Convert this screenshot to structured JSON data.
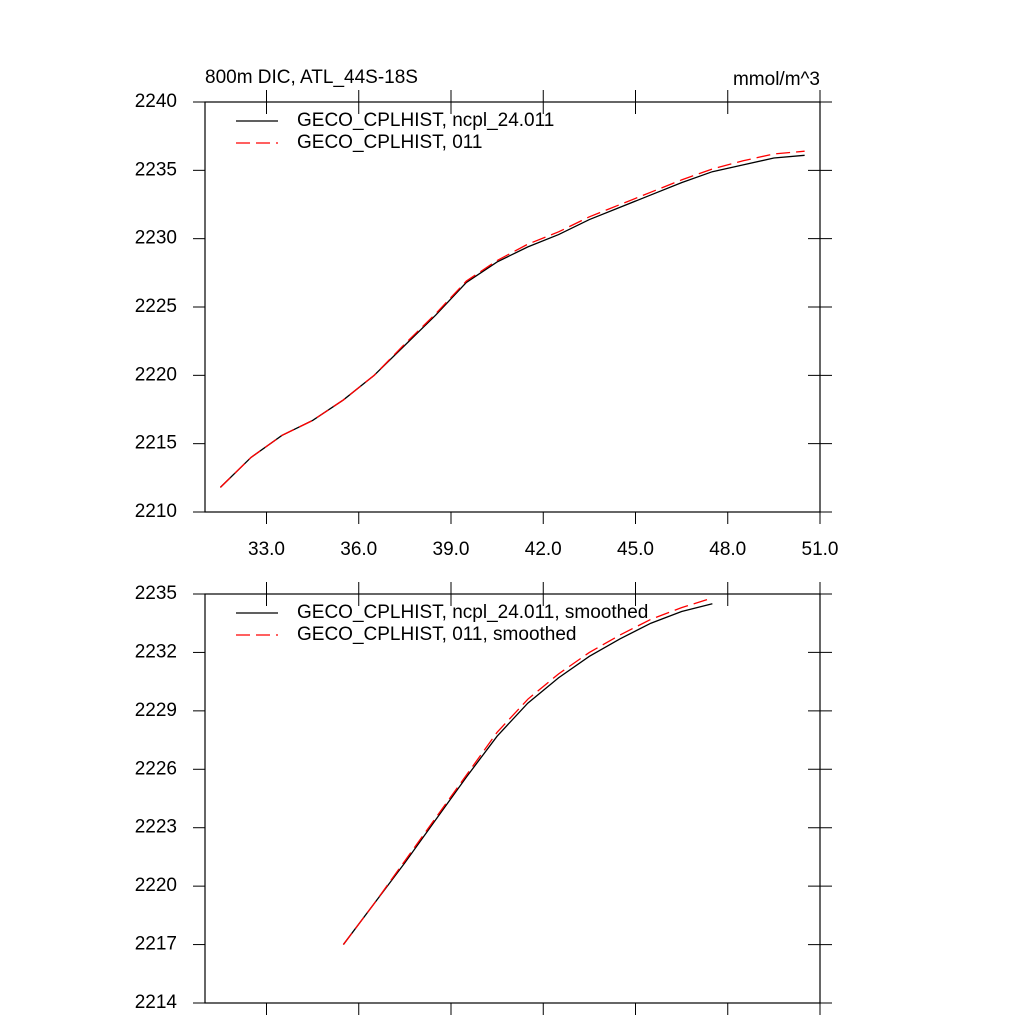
{
  "chart_data": [
    {
      "type": "line",
      "title": "800m DIC, ATL_44S-18S",
      "units": "mmol/m^3",
      "x": [
        31.5,
        32.5,
        33.5,
        34.5,
        35.5,
        36.5,
        37.5,
        38.5,
        39.5,
        40.5,
        41.5,
        42.5,
        43.5,
        44.5,
        45.5,
        46.5,
        47.5,
        48.5,
        49.5,
        50.5
      ],
      "series": [
        {
          "name": "GECO_CPLHIST, ncpl_24.011",
          "color": "#000000",
          "linestyle": "solid",
          "values": [
            2211.8,
            2214.0,
            2215.6,
            2216.7,
            2218.2,
            2220.0,
            2222.2,
            2224.4,
            2226.8,
            2228.3,
            2229.4,
            2230.3,
            2231.4,
            2232.3,
            2233.2,
            2234.1,
            2234.9,
            2235.4,
            2235.9,
            2236.1
          ]
        },
        {
          "name": "GECO_CPLHIST, 011",
          "color": "#ff0000",
          "linestyle": "dashed",
          "values": [
            2211.8,
            2214.0,
            2215.6,
            2216.7,
            2218.2,
            2220.0,
            2222.3,
            2224.5,
            2226.9,
            2228.4,
            2229.6,
            2230.5,
            2231.6,
            2232.5,
            2233.4,
            2234.3,
            2235.1,
            2235.7,
            2236.2,
            2236.4
          ]
        }
      ],
      "xlim": [
        31,
        51
      ],
      "xticks": [
        {
          "value": 33,
          "label": "33.0"
        },
        {
          "value": 36,
          "label": "36.0"
        },
        {
          "value": 39,
          "label": "39.0"
        },
        {
          "value": 42,
          "label": "42.0"
        },
        {
          "value": 45,
          "label": "45.0"
        },
        {
          "value": 48,
          "label": "48.0"
        },
        {
          "value": 51,
          "label": "51.0"
        }
      ],
      "ylim": [
        2210,
        2240
      ],
      "yticks": [
        2210,
        2215,
        2220,
        2225,
        2230,
        2235,
        2240
      ]
    },
    {
      "type": "line",
      "x": [
        35.5,
        36.5,
        37.5,
        38.5,
        39.5,
        40.5,
        41.5,
        42.5,
        43.5,
        44.5,
        45.5,
        46.5,
        47.5
      ],
      "series": [
        {
          "name": "GECO_CPLHIST, ncpl_24.011, smoothed",
          "color": "#000000",
          "linestyle": "solid",
          "values": [
            2217.0,
            2219.1,
            2221.2,
            2223.4,
            2225.6,
            2227.7,
            2229.4,
            2230.7,
            2231.8,
            2232.7,
            2233.5,
            2234.1,
            2234.5
          ]
        },
        {
          "name": "GECO_CPLHIST, 011, smoothed",
          "color": "#ff0000",
          "linestyle": "dashed",
          "values": [
            2217.0,
            2219.1,
            2221.3,
            2223.5,
            2225.7,
            2227.9,
            2229.6,
            2230.9,
            2232.0,
            2232.9,
            2233.7,
            2234.3,
            2234.8
          ]
        }
      ],
      "xlim": [
        31,
        51
      ],
      "xticks": [
        33,
        36,
        39,
        42,
        45,
        48,
        51
      ],
      "ylim": [
        2214,
        2235
      ],
      "yticks": [
        2214,
        2217,
        2220,
        2223,
        2226,
        2229,
        2232,
        2235
      ]
    }
  ]
}
